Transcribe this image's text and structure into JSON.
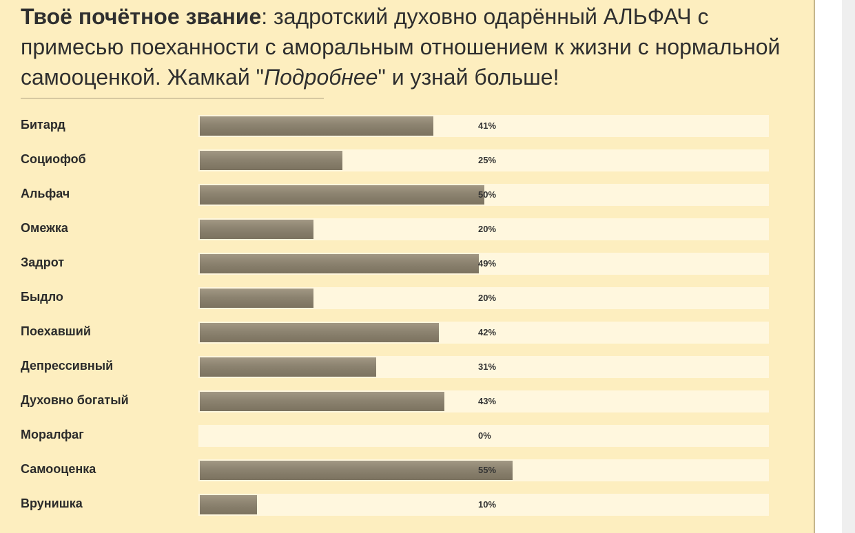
{
  "header": {
    "title_bold": "Твоё почётное звание",
    "title_rest_1": ": задротский духовно одарённый АЛЬФАЧ с примесью поеханности с аморальным отношением к жизни с нормальной самооценкой. Жамкай \"",
    "title_link": "Подробнее",
    "title_rest_2": "\" и узнай больше!"
  },
  "colors": {
    "panel_background": "#fdeebf",
    "track": "#fff7de",
    "bar": "#8c8370",
    "text": "#2b2b2b"
  },
  "chart_data": {
    "type": "bar",
    "orientation": "horizontal",
    "categories": [
      "Битард",
      "Социофоб",
      "Альфач",
      "Омежка",
      "Задрот",
      "Быдло",
      "Поехавший",
      "Депрессивный",
      "Духовно богатый",
      "Моралфаг",
      "Самооценка",
      "Врунишка"
    ],
    "values": [
      41,
      25,
      50,
      20,
      49,
      20,
      42,
      31,
      43,
      0,
      55,
      10
    ],
    "value_labels": [
      "41%",
      "25%",
      "50%",
      "20%",
      "49%",
      "20%",
      "42%",
      "31%",
      "43%",
      "0%",
      "55%",
      "10%"
    ],
    "unit": "%",
    "xlim": [
      0,
      100
    ]
  }
}
